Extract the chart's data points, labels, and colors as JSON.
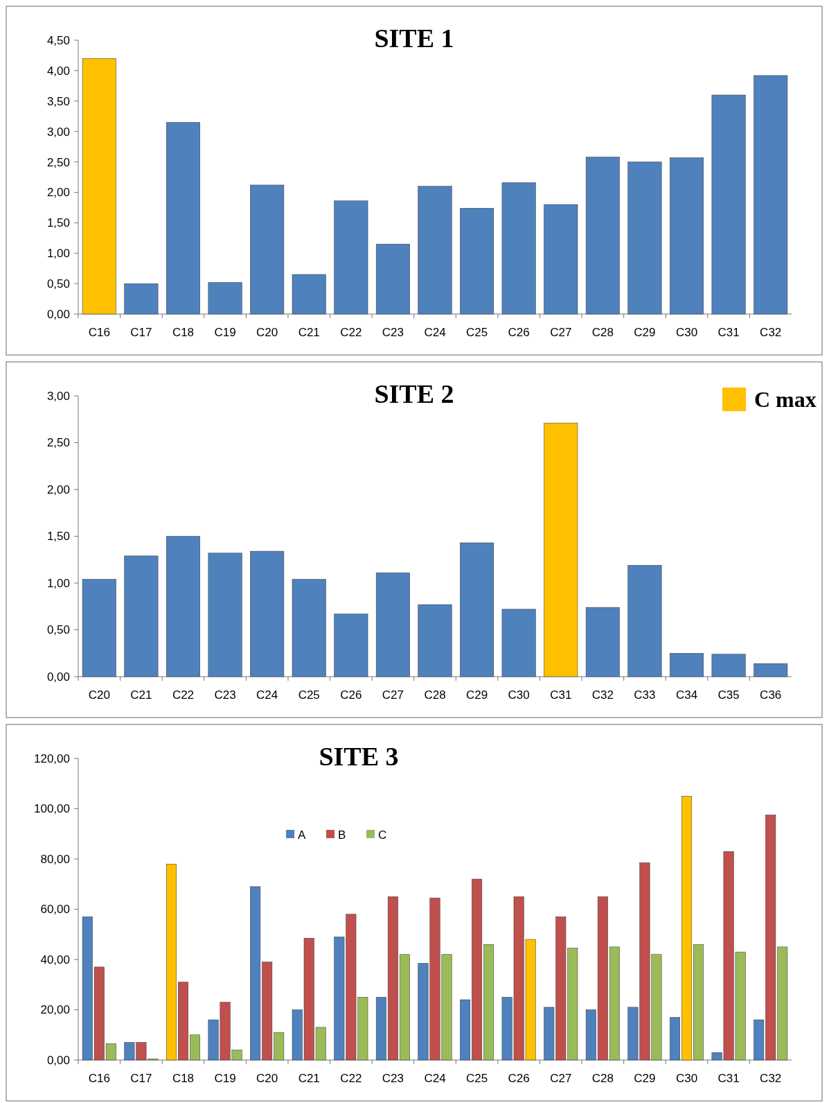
{
  "chart_data": [
    {
      "type": "bar",
      "title": "SITE 1",
      "categories": [
        "C16",
        "C17",
        "C18",
        "C19",
        "C20",
        "C21",
        "C22",
        "C23",
        "C24",
        "C25",
        "C26",
        "C27",
        "C28",
        "C29",
        "C30",
        "C31",
        "C32"
      ],
      "values": [
        4.2,
        0.5,
        3.15,
        0.52,
        2.12,
        0.65,
        1.86,
        1.15,
        2.1,
        1.74,
        2.16,
        1.8,
        2.58,
        2.5,
        2.57,
        3.6,
        3.92
      ],
      "colors": [
        "#ffc000",
        "#4f81bd",
        "#4f81bd",
        "#4f81bd",
        "#4f81bd",
        "#4f81bd",
        "#4f81bd",
        "#4f81bd",
        "#4f81bd",
        "#4f81bd",
        "#4f81bd",
        "#4f81bd",
        "#4f81bd",
        "#4f81bd",
        "#4f81bd",
        "#4f81bd",
        "#4f81bd"
      ],
      "ylim": [
        0,
        4.5
      ],
      "yticks": [
        {
          "value": 0,
          "label": "0,00"
        },
        {
          "value": 0.5,
          "label": "0,50"
        },
        {
          "value": 1,
          "label": "1,00"
        },
        {
          "value": 1.5,
          "label": "1,50"
        },
        {
          "value": 2,
          "label": "2,00"
        },
        {
          "value": 2.5,
          "label": "2,50"
        },
        {
          "value": 3,
          "label": "3,00"
        },
        {
          "value": 3.5,
          "label": "3,50"
        },
        {
          "value": 4,
          "label": "4,00"
        },
        {
          "value": 4.5,
          "label": "4,50"
        }
      ]
    },
    {
      "type": "bar",
      "title": "SITE 2",
      "categories": [
        "C20",
        "C21",
        "C22",
        "C23",
        "C24",
        "C25",
        "C26",
        "C27",
        "C28",
        "C29",
        "C30",
        "C31",
        "C32",
        "C33",
        "C34",
        "C35",
        "C36"
      ],
      "values": [
        1.04,
        1.29,
        1.5,
        1.32,
        1.34,
        1.04,
        0.67,
        1.11,
        0.77,
        1.43,
        0.72,
        2.71,
        0.74,
        1.19,
        0.25,
        0.24,
        0.14
      ],
      "colors": [
        "#4f81bd",
        "#4f81bd",
        "#4f81bd",
        "#4f81bd",
        "#4f81bd",
        "#4f81bd",
        "#4f81bd",
        "#4f81bd",
        "#4f81bd",
        "#4f81bd",
        "#4f81bd",
        "#ffc000",
        "#4f81bd",
        "#4f81bd",
        "#4f81bd",
        "#4f81bd",
        "#4f81bd"
      ],
      "ylim": [
        0,
        3
      ],
      "yticks": [
        {
          "value": 0,
          "label": "0,00"
        },
        {
          "value": 0.5,
          "label": "0,50"
        },
        {
          "value": 1,
          "label": "1,00"
        },
        {
          "value": 1.5,
          "label": "1,50"
        },
        {
          "value": 2,
          "label": "2,00"
        },
        {
          "value": 2.5,
          "label": "2,50"
        },
        {
          "value": 3,
          "label": "3,00"
        }
      ],
      "annotations": [
        "C max"
      ]
    },
    {
      "type": "bar",
      "title": "SITE 3",
      "categories": [
        "C16",
        "C17",
        "C18",
        "C19",
        "C20",
        "C21",
        "C22",
        "C23",
        "C24",
        "C25",
        "C26",
        "C27",
        "C28",
        "C29",
        "C30",
        "C31",
        "C32"
      ],
      "series": [
        {
          "name": "A",
          "color": "#4f81bd",
          "values": [
            57,
            7,
            78,
            16,
            69,
            20,
            49,
            25,
            38.5,
            24,
            25,
            21,
            20,
            21,
            17,
            3,
            16
          ],
          "colors": [
            "#4f81bd",
            "#4f81bd",
            "#ffc000",
            "#4f81bd",
            "#4f81bd",
            "#4f81bd",
            "#4f81bd",
            "#4f81bd",
            "#4f81bd",
            "#4f81bd",
            "#4f81bd",
            "#4f81bd",
            "#4f81bd",
            "#4f81bd",
            "#4f81bd",
            "#4f81bd",
            "#4f81bd"
          ]
        },
        {
          "name": "B",
          "color": "#c0504d",
          "values": [
            37,
            7,
            31,
            23,
            39,
            48.5,
            58,
            65,
            64.5,
            72,
            65,
            57,
            65,
            78.5,
            105,
            83,
            97.5
          ],
          "colors": [
            "#c0504d",
            "#c0504d",
            "#c0504d",
            "#c0504d",
            "#c0504d",
            "#c0504d",
            "#c0504d",
            "#c0504d",
            "#c0504d",
            "#c0504d",
            "#c0504d",
            "#c0504d",
            "#c0504d",
            "#c0504d",
            "#ffc000",
            "#c0504d",
            "#c0504d"
          ]
        },
        {
          "name": "C",
          "color": "#9bbb59",
          "values": [
            6.5,
            0.5,
            10,
            4,
            11,
            13,
            25,
            42,
            42,
            46,
            48,
            44.5,
            45,
            42,
            46,
            43,
            45
          ],
          "colors": [
            "#9bbb59",
            "#9bbb59",
            "#9bbb59",
            "#9bbb59",
            "#9bbb59",
            "#9bbb59",
            "#9bbb59",
            "#9bbb59",
            "#9bbb59",
            "#9bbb59",
            "#ffc000",
            "#9bbb59",
            "#9bbb59",
            "#9bbb59",
            "#9bbb59",
            "#9bbb59",
            "#9bbb59"
          ]
        }
      ],
      "legend": "top left",
      "ylim": [
        0,
        120
      ],
      "yticks": [
        {
          "value": 0,
          "label": "0,00"
        },
        {
          "value": 20,
          "label": "20,00"
        },
        {
          "value": 40,
          "label": "40,00"
        },
        {
          "value": 60,
          "label": "60,00"
        },
        {
          "value": 80,
          "label": "80,00"
        },
        {
          "value": 100,
          "label": "100,00"
        },
        {
          "value": 120,
          "label": "120,00"
        }
      ]
    }
  ]
}
